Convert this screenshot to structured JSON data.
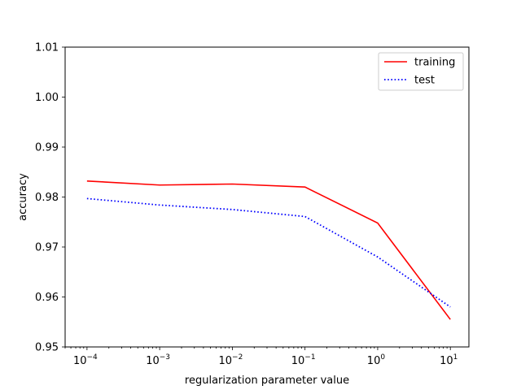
{
  "chart_data": {
    "type": "line",
    "title": "",
    "xlabel": "regularization parameter value",
    "ylabel": "accuracy",
    "xscale": "log",
    "x": [
      0.0001,
      0.001,
      0.01,
      0.1,
      1,
      10
    ],
    "xlim": [
      5e-05,
      18
    ],
    "ylim": [
      0.95,
      1.01
    ],
    "x_ticks": [
      {
        "value": 0.0001,
        "base": "10",
        "exp": "−4"
      },
      {
        "value": 0.001,
        "base": "10",
        "exp": "−3"
      },
      {
        "value": 0.01,
        "base": "10",
        "exp": "−2"
      },
      {
        "value": 0.1,
        "base": "10",
        "exp": "−1"
      },
      {
        "value": 1,
        "base": "10",
        "exp": "0"
      },
      {
        "value": 10,
        "base": "10",
        "exp": "1"
      }
    ],
    "y_ticks": [
      {
        "value": 0.95,
        "label": "0.95"
      },
      {
        "value": 0.96,
        "label": "0.96"
      },
      {
        "value": 0.97,
        "label": "0.97"
      },
      {
        "value": 0.98,
        "label": "0.98"
      },
      {
        "value": 0.99,
        "label": "0.99"
      },
      {
        "value": 1.0,
        "label": "1.00"
      },
      {
        "value": 1.01,
        "label": "1.01"
      }
    ],
    "grid": false,
    "legend_position": "top-right",
    "series": [
      {
        "name": "training",
        "color": "#ff0000",
        "style": "solid",
        "values": [
          0.9832,
          0.9824,
          0.9826,
          0.982,
          0.9748,
          0.9555
        ]
      },
      {
        "name": "test",
        "color": "#0000ff",
        "style": "dotted",
        "values": [
          0.9797,
          0.9784,
          0.9775,
          0.9761,
          0.968,
          0.958
        ]
      }
    ]
  }
}
